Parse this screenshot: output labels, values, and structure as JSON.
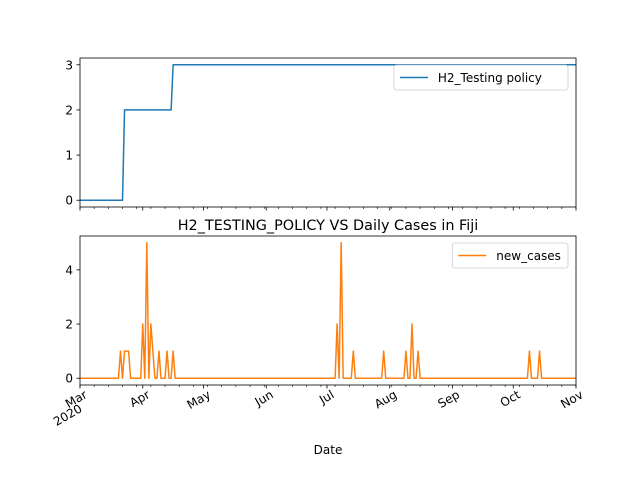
{
  "chart_data": [
    {
      "type": "line",
      "title": "",
      "xlabel": "",
      "ylabel": "",
      "x_range": [
        "2020-03-01",
        "2020-11-01"
      ],
      "ylim": [
        -0.15,
        3.15
      ],
      "yticks": [
        0,
        1,
        2,
        3
      ],
      "grid": false,
      "legend_position": "top-right",
      "series": [
        {
          "name": "H2_Testing policy",
          "color": "#1f77b4",
          "points": [
            [
              "2020-03-01",
              0
            ],
            [
              "2020-03-22",
              0
            ],
            [
              "2020-03-23",
              2
            ],
            [
              "2020-04-15",
              2
            ],
            [
              "2020-04-16",
              3
            ],
            [
              "2020-11-01",
              3
            ]
          ]
        }
      ]
    },
    {
      "type": "line",
      "title": "H2_TESTING_POLICY VS Daily Cases in Fiji",
      "xlabel": "Date",
      "ylabel": "",
      "x_range": [
        "2020-03-01",
        "2020-11-01"
      ],
      "x_ticks": [
        {
          "date": "2020-03-01",
          "label": "Mar",
          "label2": "2020"
        },
        {
          "date": "2020-04-01",
          "label": "Apr"
        },
        {
          "date": "2020-05-01",
          "label": "May"
        },
        {
          "date": "2020-06-01",
          "label": "Jun"
        },
        {
          "date": "2020-07-01",
          "label": "Jul"
        },
        {
          "date": "2020-08-01",
          "label": "Aug"
        },
        {
          "date": "2020-09-01",
          "label": "Sep"
        },
        {
          "date": "2020-10-01",
          "label": "Oct"
        },
        {
          "date": "2020-11-01",
          "label": "Nov"
        }
      ],
      "ylim": [
        -0.25,
        5.25
      ],
      "yticks": [
        0,
        2,
        4
      ],
      "grid": false,
      "legend_position": "top-right",
      "series": [
        {
          "name": "new_cases",
          "color": "#ff7f0e",
          "points": [
            [
              "2020-03-01",
              0
            ],
            [
              "2020-03-20",
              0
            ],
            [
              "2020-03-21",
              1
            ],
            [
              "2020-03-22",
              0
            ],
            [
              "2020-03-23",
              1
            ],
            [
              "2020-03-24",
              1
            ],
            [
              "2020-03-25",
              1
            ],
            [
              "2020-03-26",
              0
            ],
            [
              "2020-03-31",
              0
            ],
            [
              "2020-04-01",
              2
            ],
            [
              "2020-04-02",
              0
            ],
            [
              "2020-04-03",
              5
            ],
            [
              "2020-04-04",
              0
            ],
            [
              "2020-04-05",
              2
            ],
            [
              "2020-04-06",
              1
            ],
            [
              "2020-04-07",
              0
            ],
            [
              "2020-04-08",
              0
            ],
            [
              "2020-04-09",
              1
            ],
            [
              "2020-04-10",
              0
            ],
            [
              "2020-04-12",
              0
            ],
            [
              "2020-04-13",
              1
            ],
            [
              "2020-04-14",
              0
            ],
            [
              "2020-04-15",
              0
            ],
            [
              "2020-04-16",
              1
            ],
            [
              "2020-04-17",
              0
            ],
            [
              "2020-07-05",
              0
            ],
            [
              "2020-07-06",
              2
            ],
            [
              "2020-07-07",
              0
            ],
            [
              "2020-07-08",
              5
            ],
            [
              "2020-07-09",
              0
            ],
            [
              "2020-07-13",
              0
            ],
            [
              "2020-07-14",
              1
            ],
            [
              "2020-07-15",
              0
            ],
            [
              "2020-07-28",
              0
            ],
            [
              "2020-07-29",
              1
            ],
            [
              "2020-07-30",
              0
            ],
            [
              "2020-08-08",
              0
            ],
            [
              "2020-08-09",
              1
            ],
            [
              "2020-08-10",
              0
            ],
            [
              "2020-08-11",
              0
            ],
            [
              "2020-08-12",
              2
            ],
            [
              "2020-08-13",
              0
            ],
            [
              "2020-08-14",
              0
            ],
            [
              "2020-08-15",
              1
            ],
            [
              "2020-08-16",
              0
            ],
            [
              "2020-10-08",
              0
            ],
            [
              "2020-10-09",
              1
            ],
            [
              "2020-10-10",
              0
            ],
            [
              "2020-10-13",
              0
            ],
            [
              "2020-10-14",
              1
            ],
            [
              "2020-10-15",
              0
            ],
            [
              "2020-11-01",
              0
            ]
          ]
        }
      ]
    }
  ]
}
